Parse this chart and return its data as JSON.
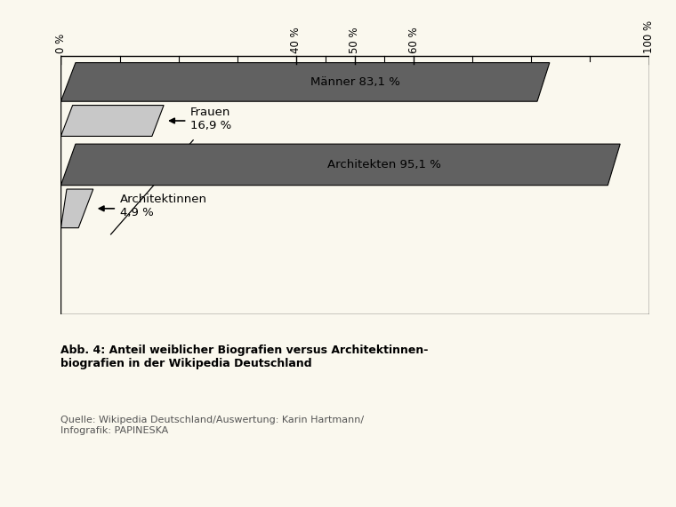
{
  "background_color": "#faf8ee",
  "dark_color": "#616161",
  "light_color": "#c8c8c8",
  "tick_labels": [
    "0 %",
    "40 %",
    "50 %",
    "60 %",
    "100 %"
  ],
  "tick_positions": [
    0,
    40,
    50,
    60,
    100
  ],
  "minor_ticks": [
    10,
    20,
    30,
    45,
    55,
    70,
    80,
    90
  ],
  "maenner_pct": 83.1,
  "frauen_pct": 16.9,
  "architekten_pct": 95.1,
  "architektinnen_pct": 4.9,
  "maenner_label": "Männer 83,1 %",
  "frauen_label": "Frauen\n16,9 %",
  "architekten_label": "Architekten 95,1 %",
  "architektinnen_label": "Architektinnen\n4,9 %",
  "title_bold": "Abb. 4: Anteil weiblicher Biografien versus Architektinnen-\nbiografien in der Wikipedia Deutschland",
  "title_source": "Quelle: Wikipedia Deutschland/Auswertung: Karin Hartmann/\nInfografik: PAPINESKA",
  "fontsize_tick": 8.5,
  "fontsize_label": 9.5,
  "fontsize_title_bold": 9,
  "fontsize_source": 8
}
